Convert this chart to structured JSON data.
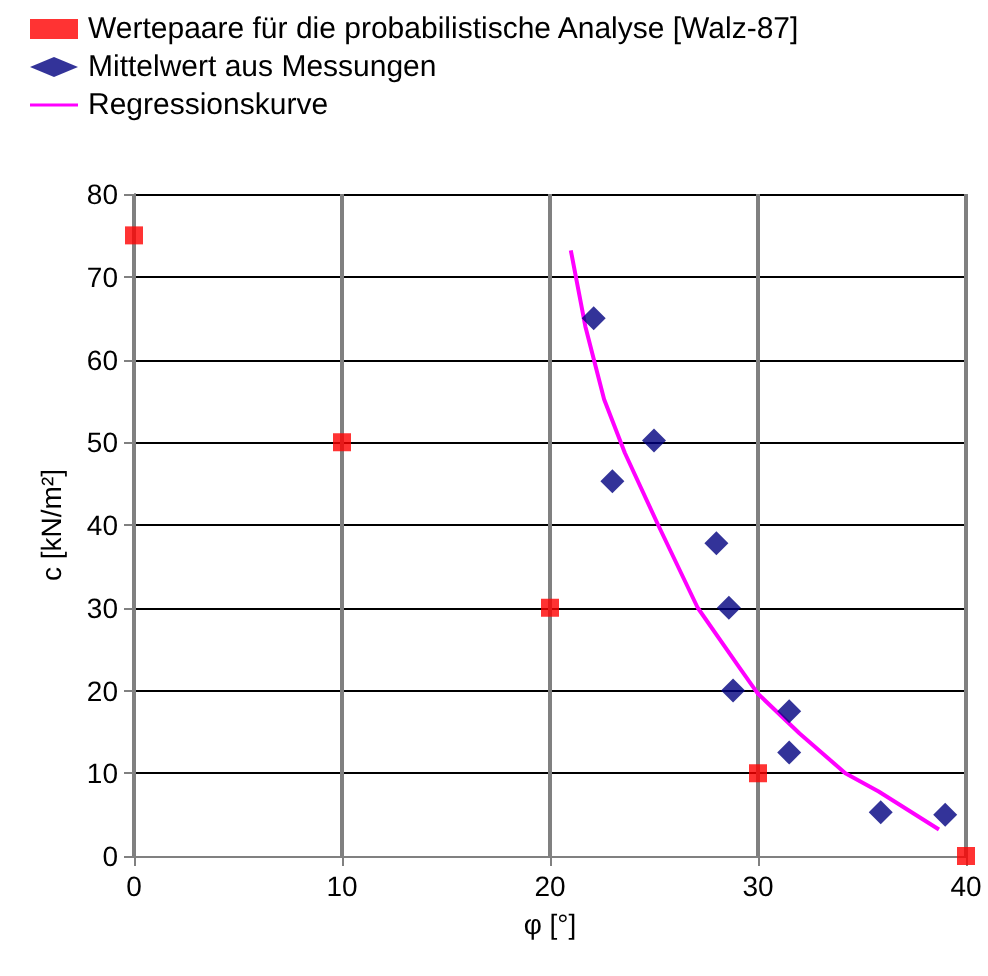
{
  "chart_data": {
    "type": "scatter",
    "xlabel": "φ [°]",
    "ylabel": "c [kN/m²]",
    "xlim": [
      0,
      40
    ],
    "xticks": [
      0,
      10,
      20,
      30,
      40
    ],
    "ylim": [
      0,
      80
    ],
    "yticks": [
      0,
      10,
      20,
      30,
      40,
      50,
      60,
      70,
      80
    ],
    "grid": true,
    "legend": "top left",
    "series": [
      {
        "name": "Wertepaare für die probabilistische Analyse [Walz-87]",
        "type": "scatter",
        "marker": "square",
        "color": "#ff0000",
        "x": [
          0,
          10,
          20,
          30,
          40
        ],
        "values": [
          75,
          50,
          30,
          10,
          0
        ]
      },
      {
        "name": "Mittelwert aus Messungen",
        "type": "scatter",
        "marker": "diamond",
        "color": "#000080",
        "x": [
          22.1,
          25.0,
          23.0,
          28.0,
          28.6,
          28.8,
          31.5,
          31.5,
          35.9,
          39.0
        ],
        "values": [
          65,
          50.2,
          45.3,
          37.8,
          30,
          20,
          17.5,
          12.5,
          5.3,
          5.0
        ]
      },
      {
        "name": "Regressionskurve",
        "type": "line",
        "marker": "none",
        "line_style": "solid",
        "color": "#ff00ff",
        "x": [
          21.0,
          21.7,
          22.6,
          23.6,
          25.2,
          27.1,
          29.1,
          30.0,
          32.0,
          34.2,
          35.8,
          38.7
        ],
        "values": [
          73.2,
          64,
          55.2,
          48.7,
          40,
          30,
          22.8,
          19.6,
          14.8,
          10,
          7.8,
          3.2
        ]
      }
    ]
  }
}
